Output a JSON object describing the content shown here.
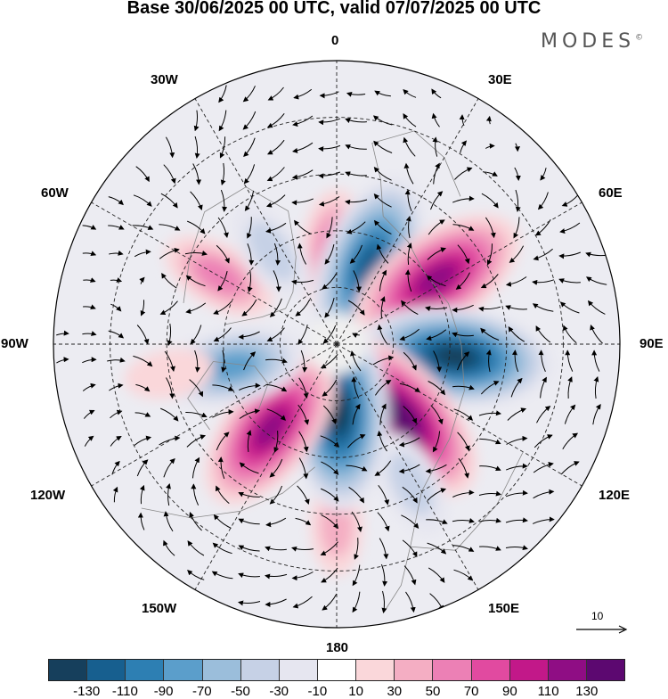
{
  "title": "Base 30/06/2025 00 UTC, valid 07/07/2025 00 UTC",
  "brand": "MODES",
  "brand_mark": "©",
  "longitude_labels": {
    "lon_0": "0",
    "lon_30e": "30E",
    "lon_60e": "60E",
    "lon_90e": "90E",
    "lon_120e": "120E",
    "lon_150e": "150E",
    "lon_180": "180",
    "lon_150w": "150W",
    "lon_120w": "120W",
    "lon_90w": "90W",
    "lon_60w": "60W",
    "lon_30w": "30W"
  },
  "reference_vector": "10",
  "colorbar": {
    "colors": [
      "#163f5c",
      "#175f8f",
      "#2d7fb3",
      "#5b9ecb",
      "#9bbedb",
      "#c6d1e6",
      "#e6e6f0",
      "#ffffff",
      "#fad7da",
      "#f4aec3",
      "#ec80b5",
      "#e14aa0",
      "#c21889",
      "#8f0d84",
      "#5c0870"
    ],
    "ticks": [
      "-130",
      "-110",
      "-90",
      "-70",
      "-50",
      "-30",
      "-10",
      "10",
      "30",
      "50",
      "70",
      "90",
      "110",
      "130"
    ]
  },
  "anomaly_centers": [
    {
      "lon": 0,
      "colat": 15,
      "value": 70
    },
    {
      "lon": 22,
      "colat": 15,
      "value": -120
    },
    {
      "lon": 57,
      "colat": 21,
      "value": 120
    },
    {
      "lon": 96,
      "colat": 21,
      "value": -130
    },
    {
      "lon": 138,
      "colat": 17,
      "value": 130
    },
    {
      "lon": 152,
      "colat": 28,
      "value": -40
    },
    {
      "lon": 180,
      "colat": 32,
      "value": 30
    },
    {
      "lon": 178,
      "colat": 12,
      "value": -130
    },
    {
      "lon": 218,
      "colat": 19,
      "value": 110
    },
    {
      "lon": 258,
      "colat": 19,
      "value": -80
    },
    {
      "lon": 300,
      "colat": 24,
      "value": 50
    },
    {
      "lon": 325,
      "colat": 20,
      "value": -40
    },
    {
      "lon": 260,
      "colat": 30,
      "value": 20
    }
  ]
}
